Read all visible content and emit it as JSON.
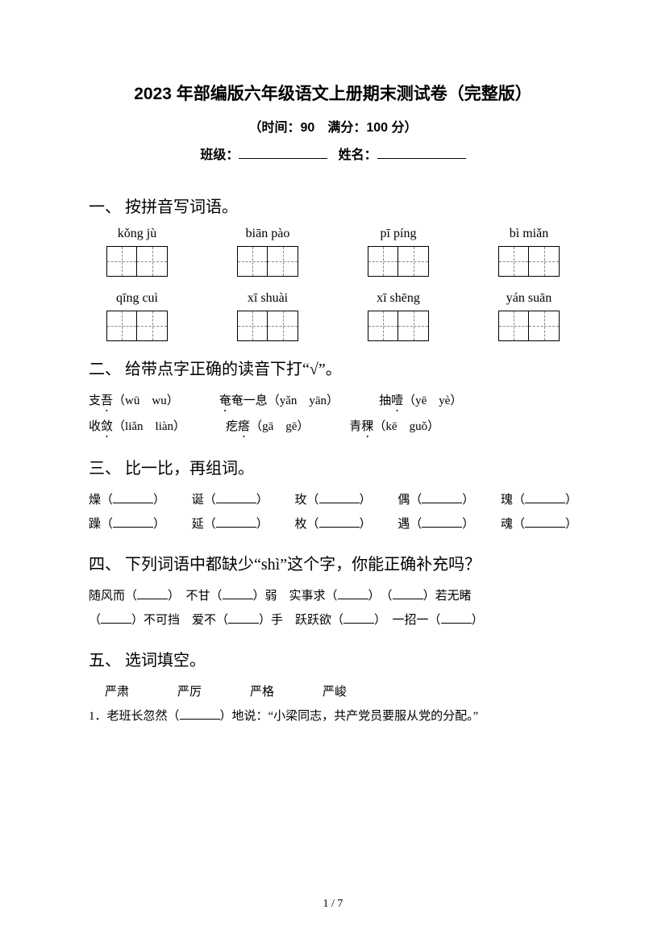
{
  "colors": {
    "text": "#000000",
    "bg": "#ffffff",
    "dash": "#888888"
  },
  "header": {
    "title": "2023 年部编版六年级语文上册期末测试卷（完整版）",
    "subtitle": "（时间：90　满分：100 分）",
    "class_label": "班级：",
    "name_label": "姓名："
  },
  "q1": {
    "head": "一、 按拼音写词语。",
    "row1": [
      "kǒng jù",
      "biān pào",
      "pī píng",
      "bì miǎn"
    ],
    "row2": [
      "qīng cuì",
      "xī shuài",
      "xī shēng",
      "yán suān"
    ]
  },
  "q2": {
    "head": "二、 给带点字正确的读音下打“√”。",
    "items": [
      {
        "pre": "支",
        "em": "吾",
        "opts": "（wū　wu）"
      },
      {
        "pre": "",
        "em": "奄",
        "post": "奄一息",
        "opts": "（yǎn　yān）"
      },
      {
        "pre": "抽",
        "em": "噎",
        "opts": "（yē　yè）"
      },
      {
        "pre": "收",
        "em": "敛",
        "opts": "（liǎn　liàn）"
      },
      {
        "pre": "疙",
        "em": "瘩",
        "opts": "（gā　gē）"
      },
      {
        "pre": "青",
        "em": "稞",
        "opts": "（kē　guǒ）"
      }
    ]
  },
  "q3": {
    "head": "三、 比一比，再组词。",
    "row1": [
      "燥",
      "诞",
      "玫",
      "偶",
      "瑰"
    ],
    "row2": [
      "躁",
      "延",
      "枚",
      "遇",
      "魂"
    ]
  },
  "q4": {
    "head": "四、 下列词语中都缺少“shì”这个字，你能正确补充吗？",
    "line1": [
      "随风而（",
      "）　不甘（",
      "）弱　实事求（",
      "）　（",
      "）若无睹"
    ],
    "line2": [
      "（",
      "）不可挡　爱不（",
      "）手　跃跃欲（",
      "）　一招一（",
      "）"
    ]
  },
  "q5": {
    "head": "五、 选词填空。",
    "words": [
      "严肃",
      "严厉",
      "严格",
      "严峻"
    ],
    "s1a": "1．老班长忽然（",
    "s1b": "）地说：“小梁同志，共产党员要服从党的分配。”"
  },
  "footer": {
    "page": "1 / 7"
  }
}
